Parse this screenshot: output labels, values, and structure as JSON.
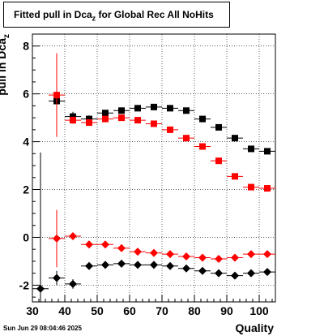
{
  "title_box": {
    "prefix": "Fitted pull in Dca",
    "subscript": "z",
    "suffix": " for Global Rec All NoHits"
  },
  "y_axis_label": {
    "main": "pull in Dca",
    "subscript": "z"
  },
  "x_axis_label": "Quality",
  "date_stamp": "Sun Jun 29 08:04:46 2025",
  "chart_data": {
    "type": "scatter",
    "title": "Fitted pull in Dca_z for Global Rec All NoHits",
    "xlabel": "Quality",
    "ylabel": "pull in Dca_z",
    "xlim": [
      30,
      105
    ],
    "ylim": [
      -2.7,
      8.5
    ],
    "x_ticks": [
      30,
      40,
      50,
      60,
      70,
      80,
      90,
      100
    ],
    "y_ticks": [
      -2,
      0,
      2,
      4,
      6,
      8
    ],
    "grid": true,
    "series": [
      {
        "color": "#000000",
        "marker": "square",
        "x": [
          37.5,
          42.5,
          47.5,
          52.5,
          57.5,
          62.5,
          67.5,
          72.5,
          77.5,
          82.5,
          87.5,
          92.5,
          97.5,
          102.5
        ],
        "y": [
          5.7,
          5.05,
          4.95,
          5.2,
          5.3,
          5.4,
          5.45,
          5.4,
          5.3,
          4.95,
          4.6,
          4.15,
          3.7,
          3.6
        ],
        "err": [
          0.25,
          0.2,
          0.15,
          0.1,
          0.1,
          0.1,
          0.1,
          0.1,
          0.1,
          0.1,
          0.1,
          0.1,
          0.1,
          0.1
        ]
      },
      {
        "color": "#ff0000",
        "marker": "square",
        "x": [
          37.5,
          42.5,
          47.5,
          52.5,
          57.5,
          62.5,
          67.5,
          72.5,
          77.5,
          82.5,
          87.5,
          92.5,
          97.5,
          102.5
        ],
        "y": [
          5.95,
          4.9,
          4.8,
          4.95,
          5.0,
          4.9,
          4.75,
          4.5,
          4.15,
          3.8,
          3.2,
          2.55,
          2.1,
          2.05
        ],
        "err": [
          1.75,
          0.15,
          0.12,
          0.1,
          0.1,
          0.1,
          0.1,
          0.1,
          0.1,
          0.1,
          0.1,
          0.1,
          0.1,
          0.1
        ]
      },
      {
        "color": "#ff0000",
        "marker": "diamond",
        "x": [
          37.5,
          42.5,
          47.5,
          52.5,
          57.5,
          62.5,
          67.5,
          72.5,
          77.5,
          82.5,
          87.5,
          92.5,
          97.5,
          102.5
        ],
        "y": [
          -0.05,
          0.05,
          -0.3,
          -0.3,
          -0.45,
          -0.6,
          -0.65,
          -0.7,
          -0.8,
          -0.85,
          -0.9,
          -0.85,
          -0.7,
          -0.7
        ],
        "err": [
          1.2,
          0.15,
          0.1,
          0.1,
          0.1,
          0.1,
          0.1,
          0.1,
          0.1,
          0.1,
          0.1,
          0.1,
          0.1,
          0.1
        ]
      },
      {
        "color": "#000000",
        "marker": "diamond",
        "x": [
          32.5,
          37.5,
          42.5,
          47.5,
          52.5,
          57.5,
          62.5,
          67.5,
          72.5,
          77.5,
          82.5,
          87.5,
          92.5,
          97.5,
          102.5
        ],
        "y": [
          -2.15,
          -1.7,
          -1.95,
          -1.2,
          -1.15,
          -1.1,
          -1.15,
          -1.15,
          -1.2,
          -1.3,
          -1.4,
          -1.5,
          -1.6,
          -1.5,
          -1.45
        ],
        "err": [
          5.7,
          0.3,
          0.2,
          0.1,
          0.1,
          0.1,
          0.1,
          0.1,
          0.1,
          0.1,
          0.1,
          0.1,
          0.1,
          0.1,
          0.1
        ]
      }
    ]
  }
}
